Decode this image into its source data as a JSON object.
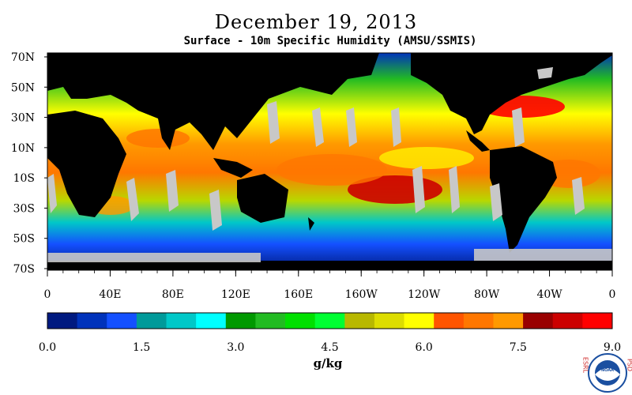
{
  "title": "December 19, 2013",
  "subtitle": "Surface - 10m Specific Humidity (AMSU/SSMIS)",
  "map": {
    "lat_labels": [
      "70N",
      "50N",
      "30N",
      "10N",
      "10S",
      "30S",
      "50S",
      "70S"
    ],
    "lon_labels": [
      "0",
      "40E",
      "80E",
      "120E",
      "160E",
      "160W",
      "120W",
      "80W",
      "40W",
      "0"
    ],
    "colors": {
      "land": "#000000",
      "missing": "#c8c8c8"
    }
  },
  "colorbar": {
    "tick_labels": [
      "0.0",
      "1.5",
      "3.0",
      "4.5",
      "6.0",
      "7.5",
      "9.0"
    ],
    "unit": "g/kg",
    "colors": [
      "#001a80",
      "#0033bb",
      "#1450ff",
      "#009a9a",
      "#00c8c8",
      "#00ffff",
      "#009900",
      "#22bb22",
      "#00e000",
      "#00ff33",
      "#b8b800",
      "#dddd00",
      "#ffff00",
      "#ff5500",
      "#ff7700",
      "#ff9900",
      "#990000",
      "#cc0000",
      "#ff0000"
    ]
  },
  "logos": {
    "left_text": "ESRL",
    "right_text": "PSD",
    "center_text": "NOAA"
  }
}
